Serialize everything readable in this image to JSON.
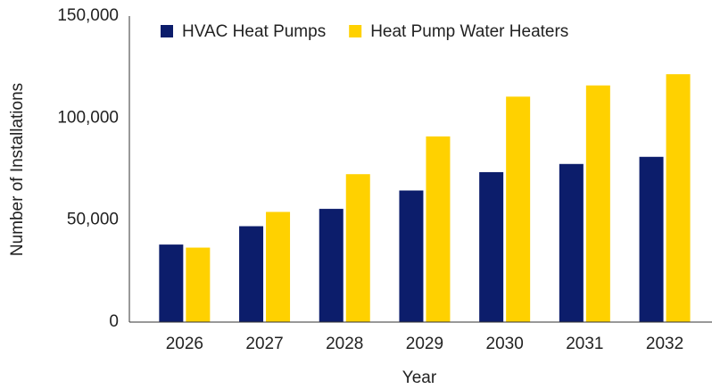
{
  "chart_data": {
    "type": "bar",
    "categories": [
      "2026",
      "2027",
      "2028",
      "2029",
      "2030",
      "2031",
      "2032"
    ],
    "series": [
      {
        "name": "HVAC Heat Pumps",
        "color": "#0c1d6b",
        "values": [
          38000,
          47000,
          55500,
          64500,
          73500,
          77500,
          81000
        ]
      },
      {
        "name": "Heat Pump Water Heaters",
        "color": "#ffd100",
        "values": [
          36500,
          54000,
          72500,
          91000,
          110500,
          116000,
          121500
        ]
      }
    ],
    "xlabel": "Year",
    "ylabel": "Number of Installations",
    "ylim": [
      0,
      150000
    ],
    "yticks": [
      0,
      {
        "value": 50000,
        "label": "50,000"
      },
      {
        "value": 100000,
        "label": "100,000"
      },
      {
        "value": 150000,
        "label": "150,000"
      }
    ],
    "grid": false,
    "legend": "top"
  }
}
